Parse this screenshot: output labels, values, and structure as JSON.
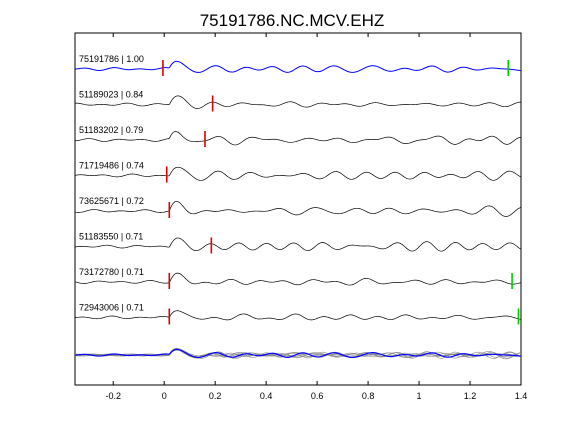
{
  "chart_data": {
    "type": "line",
    "title": "75191786.NC.MCV.EHZ",
    "xlim": [
      -0.35,
      1.4
    ],
    "xticks": [
      -0.2,
      0,
      0.2,
      0.4,
      0.6,
      0.8,
      1,
      1.2,
      1.4
    ],
    "xtick_labels": [
      "-0.2",
      "0",
      "0.2",
      "0.4",
      "0.6",
      "0.8",
      "1",
      "1.2",
      "1.4"
    ],
    "grid": false,
    "colors": {
      "main_trace": "#0000ff",
      "trace": "#000000",
      "p_pick": "#dd0000",
      "s_pick": "#00cc00",
      "stack_gray": "#888888"
    },
    "series": [
      {
        "label": "75191786 | 1.00",
        "p_pick": -0.005,
        "s_pick": 1.35,
        "highlight": true
      },
      {
        "label": "51189023 | 0.84",
        "p_pick": 0.19,
        "s_pick": null,
        "highlight": false
      },
      {
        "label": "51183202 | 0.79",
        "p_pick": 0.16,
        "s_pick": null,
        "highlight": false
      },
      {
        "label": "71719486 | 0.74",
        "p_pick": 0.01,
        "s_pick": null,
        "highlight": false
      },
      {
        "label": "73625671 | 0.72",
        "p_pick": 0.02,
        "s_pick": null,
        "highlight": false
      },
      {
        "label": "51183550 | 0.71",
        "p_pick": 0.185,
        "s_pick": null,
        "highlight": false
      },
      {
        "label": "73172780 | 0.71",
        "p_pick": 0.02,
        "s_pick": 1.365,
        "highlight": false
      },
      {
        "label": "72943006 | 0.71",
        "p_pick": 0.02,
        "s_pick": 1.39,
        "highlight": false
      }
    ],
    "stack": {
      "label": "",
      "description": "overlay of all traces"
    }
  }
}
